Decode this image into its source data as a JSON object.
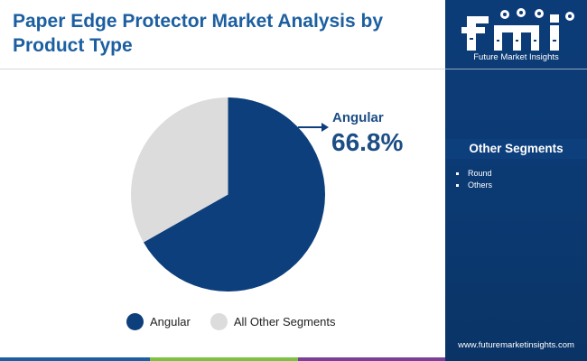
{
  "title": "Paper Edge Protector Market Analysis by Product Type",
  "chart_data": {
    "type": "pie",
    "title": "Paper Edge Protector Market Analysis by Product Type",
    "slices": [
      {
        "label": "Angular",
        "value": 66.8,
        "color": "#0d3f7c"
      },
      {
        "label": "All Other Segments",
        "value": 33.2,
        "color": "#dcdcdc"
      }
    ],
    "callout": {
      "label": "Angular",
      "value": "66.8%"
    },
    "legend": [
      "Angular",
      "All Other Segments"
    ],
    "legend_position": "bottom"
  },
  "sidebar": {
    "logo_letters": "fmi",
    "logo_subtitle": "Future Market Insights",
    "heading": "Other Segments",
    "items": [
      "Round",
      "Others"
    ],
    "website": "www.futuremarketinsights.com"
  },
  "colors": {
    "title_blue": "#1c5fa1",
    "navy": "#0d3f7c",
    "grey": "#dcdcdc",
    "bottom_bar": [
      "#1c5fa1",
      "#7dc142",
      "#7b3f98",
      "#d0d0d0"
    ]
  },
  "icon_names": [
    "logo-icon",
    "callout-arrow-icon"
  ]
}
